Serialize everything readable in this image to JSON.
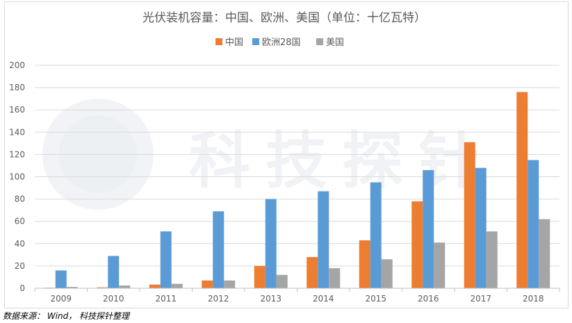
{
  "chart_data": {
    "type": "bar",
    "title": "光伏装机容量：中国、欧洲、美国（单位：十亿瓦特）",
    "categories": [
      "2009",
      "2010",
      "2011",
      "2012",
      "2013",
      "2014",
      "2015",
      "2016",
      "2017",
      "2018"
    ],
    "series": [
      {
        "name": "中国",
        "color": "#ed7d31",
        "values": [
          0.5,
          0.8,
          3.3,
          7,
          20,
          28,
          43,
          78,
          131,
          176
        ]
      },
      {
        "name": "欧洲28国",
        "color": "#5b9bd5",
        "values": [
          16,
          29,
          51,
          69,
          80,
          87,
          95,
          106,
          108,
          115
        ]
      },
      {
        "name": "美国",
        "color": "#a5a5a5",
        "values": [
          1.2,
          2.5,
          4,
          7,
          12,
          18,
          26,
          41,
          51,
          62
        ]
      }
    ],
    "ylim": [
      0,
      200
    ],
    "yticks": [
      0,
      20,
      40,
      60,
      80,
      100,
      120,
      140,
      160,
      180,
      200
    ],
    "grid": true,
    "legend": "top"
  },
  "watermark": "科技探针",
  "source": "数据来源： Wind， 科技探针整理"
}
